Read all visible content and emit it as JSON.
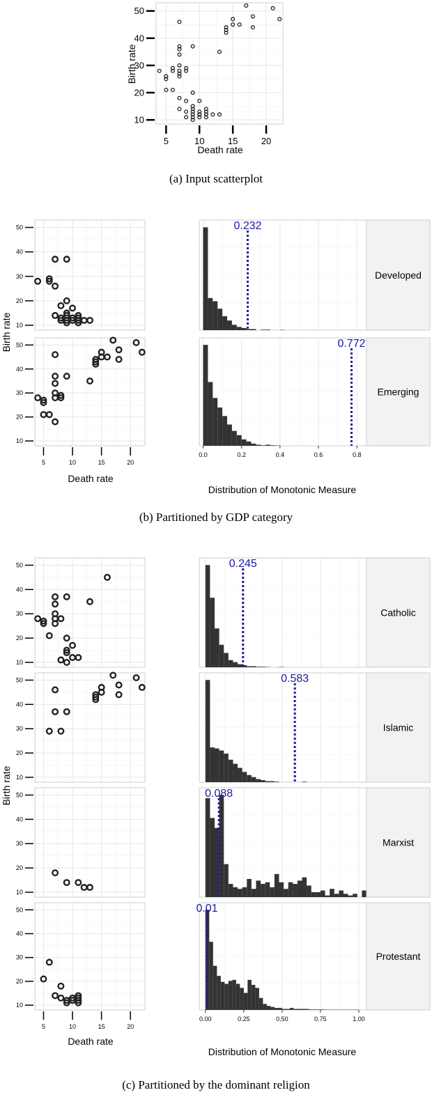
{
  "captions": {
    "a": "(a) Input scatterplot",
    "b": "(b) Partitioned by GDP category",
    "c": "(c) Partitioned by the dominant religion"
  },
  "labels": {
    "death_rate": "Death rate",
    "birth_rate": "Birth rate",
    "distribution": "Distribution of Monotonic Measure"
  },
  "colors": {
    "points": "#222222",
    "bars": "#333333",
    "obs_line": "#1a1aa6",
    "strip_bg": "#f2f2f2",
    "grid": "#e6e6e6",
    "panel_border": "#cccccc"
  },
  "chart_data": [
    {
      "id": "a",
      "type": "scatter",
      "xlabel": "Death rate",
      "ylabel": "Birth rate",
      "xlim": [
        3.5,
        22.5
      ],
      "ylim": [
        8.5,
        53
      ],
      "xticks": [
        5,
        10,
        15,
        20
      ],
      "yticks": [
        10,
        20,
        30,
        40,
        50
      ],
      "points": [
        [
          4,
          28
        ],
        [
          5,
          26
        ],
        [
          5,
          25
        ],
        [
          5,
          21
        ],
        [
          6,
          29
        ],
        [
          6,
          28
        ],
        [
          6,
          21
        ],
        [
          7,
          46
        ],
        [
          7,
          37
        ],
        [
          7,
          36
        ],
        [
          7,
          34
        ],
        [
          7,
          30
        ],
        [
          7,
          28
        ],
        [
          7,
          27
        ],
        [
          7,
          26
        ],
        [
          7,
          18
        ],
        [
          7,
          14
        ],
        [
          8,
          29
        ],
        [
          8,
          28
        ],
        [
          8,
          17
        ],
        [
          8,
          13
        ],
        [
          8,
          11
        ],
        [
          9,
          37
        ],
        [
          9,
          20
        ],
        [
          9,
          15
        ],
        [
          9,
          14
        ],
        [
          9,
          13
        ],
        [
          9,
          12
        ],
        [
          9,
          11
        ],
        [
          9,
          10
        ],
        [
          10,
          17
        ],
        [
          10,
          13
        ],
        [
          10,
          12
        ],
        [
          10,
          12
        ],
        [
          10,
          11
        ],
        [
          11,
          14
        ],
        [
          11,
          13
        ],
        [
          11,
          12
        ],
        [
          11,
          11
        ],
        [
          12,
          12
        ],
        [
          13,
          35
        ],
        [
          13,
          12
        ],
        [
          14,
          44
        ],
        [
          14,
          43
        ],
        [
          14,
          42
        ],
        [
          15,
          47
        ],
        [
          15,
          45
        ],
        [
          16,
          45
        ],
        [
          17,
          52
        ],
        [
          18,
          48
        ],
        [
          18,
          44
        ],
        [
          21,
          51
        ],
        [
          22,
          47
        ]
      ]
    },
    {
      "id": "b",
      "type": "scatter+histogram",
      "xlabel": "Death rate",
      "ylabel": "Birth rate",
      "hist_xlabel": "Distribution of Monotonic Measure",
      "hist_xticks": [
        0.0,
        0.2,
        0.4,
        0.6,
        0.8
      ],
      "hist_xlim": [
        -0.02,
        0.85
      ],
      "xlim": [
        3.5,
        22.5
      ],
      "ylim": [
        8,
        53
      ],
      "xticks": [
        5,
        10,
        15,
        20
      ],
      "yticks": [
        10,
        20,
        30,
        40,
        50
      ],
      "panels": [
        {
          "label": "Developed",
          "observed": 0.232,
          "observed_text": "0.232",
          "points": [
            [
              4,
              28
            ],
            [
              6,
              29
            ],
            [
              6,
              28
            ],
            [
              7,
              37
            ],
            [
              7,
              26
            ],
            [
              7,
              14
            ],
            [
              8,
              18
            ],
            [
              8,
              13
            ],
            [
              8,
              12
            ],
            [
              9,
              37
            ],
            [
              9,
              20
            ],
            [
              9,
              15
            ],
            [
              9,
              14
            ],
            [
              9,
              12
            ],
            [
              9,
              11
            ],
            [
              10,
              17
            ],
            [
              10,
              13
            ],
            [
              10,
              12
            ],
            [
              11,
              14
            ],
            [
              11,
              13
            ],
            [
              11,
              12
            ],
            [
              11,
              11
            ],
            [
              12,
              12
            ],
            [
              13,
              12
            ]
          ],
          "hist": {
            "bin_width": 0.025,
            "counts": [
              96,
              30,
              27,
              20,
              13,
              9,
              5,
              3,
              2,
              1,
              1,
              0,
              0.5,
              0.5,
              0,
              0,
              0.3,
              0,
              0,
              0,
              0,
              0,
              0,
              0,
              0,
              0,
              0,
              0,
              0,
              0,
              0,
              0
            ]
          }
        },
        {
          "label": "Emerging",
          "observed": 0.772,
          "observed_text": "0.772",
          "points": [
            [
              4,
              28
            ],
            [
              5,
              27
            ],
            [
              5,
              26
            ],
            [
              5,
              21
            ],
            [
              6,
              21
            ],
            [
              7,
              46
            ],
            [
              7,
              37
            ],
            [
              7,
              34
            ],
            [
              7,
              30
            ],
            [
              7,
              28
            ],
            [
              7,
              18
            ],
            [
              8,
              29
            ],
            [
              8,
              28
            ],
            [
              9,
              37
            ],
            [
              13,
              35
            ],
            [
              14,
              44
            ],
            [
              14,
              43
            ],
            [
              14,
              42
            ],
            [
              15,
              47
            ],
            [
              15,
              45
            ],
            [
              16,
              45
            ],
            [
              17,
              52
            ],
            [
              18,
              48
            ],
            [
              18,
              44
            ],
            [
              21,
              51
            ],
            [
              22,
              47
            ]
          ],
          "hist": {
            "bin_width": 0.025,
            "counts": [
              95,
              60,
              45,
              36,
              28,
              20,
              14,
              10,
              6,
              4,
              2,
              1,
              0.5,
              1,
              0.5,
              0.3,
              0,
              0,
              0,
              0,
              0,
              0,
              0,
              0,
              0,
              0,
              0,
              0,
              0,
              0,
              0,
              0
            ]
          }
        }
      ]
    },
    {
      "id": "c",
      "type": "scatter+histogram",
      "xlabel": "Death rate",
      "ylabel": "Birth rate",
      "hist_xlabel": "Distribution of Monotonic Measure",
      "hist_xticks": [
        0.0,
        0.25,
        0.5,
        0.75,
        1.0
      ],
      "hist_xtick_labels": [
        "0.00",
        "0.25",
        "0.50",
        "0.75",
        "1.00"
      ],
      "hist_xlim": [
        -0.04,
        1.05
      ],
      "xlim": [
        3.5,
        22.5
      ],
      "ylim": [
        8,
        53
      ],
      "xticks": [
        5,
        10,
        15,
        20
      ],
      "yticks": [
        10,
        20,
        30,
        40,
        50
      ],
      "panels": [
        {
          "label": "Catholic",
          "observed": 0.245,
          "observed_text": "0.245",
          "points": [
            [
              4,
              28
            ],
            [
              5,
              27
            ],
            [
              5,
              26
            ],
            [
              6,
              21
            ],
            [
              7,
              37
            ],
            [
              7,
              34
            ],
            [
              7,
              30
            ],
            [
              7,
              28
            ],
            [
              7,
              26
            ],
            [
              8,
              28
            ],
            [
              8,
              11
            ],
            [
              9,
              37
            ],
            [
              9,
              20
            ],
            [
              9,
              15
            ],
            [
              9,
              14
            ],
            [
              9,
              10
            ],
            [
              10,
              17
            ],
            [
              10,
              12
            ],
            [
              11,
              12
            ],
            [
              13,
              35
            ],
            [
              16,
              45
            ]
          ],
          "hist": {
            "bin_width": 0.03,
            "counts": [
              100,
              68,
              38,
              22,
              14,
              7,
              5,
              3,
              2,
              1,
              1,
              0.5,
              0.5,
              0.3,
              0,
              0,
              0.3,
              0,
              0,
              0,
              0,
              0,
              0,
              0,
              0,
              0,
              0,
              0,
              0,
              0,
              0,
              0,
              0,
              0,
              0
            ]
          }
        },
        {
          "label": "Islamic",
          "observed": 0.583,
          "observed_text": "0.583",
          "points": [
            [
              6,
              29
            ],
            [
              7,
              46
            ],
            [
              7,
              37
            ],
            [
              8,
              29
            ],
            [
              9,
              37
            ],
            [
              14,
              44
            ],
            [
              14,
              43
            ],
            [
              14,
              42
            ],
            [
              15,
              47
            ],
            [
              15,
              45
            ],
            [
              17,
              52
            ],
            [
              18,
              48
            ],
            [
              18,
              44
            ],
            [
              21,
              51
            ],
            [
              22,
              47
            ]
          ],
          "hist": {
            "bin_width": 0.03,
            "counts": [
              100,
              34,
              33,
              31,
              28,
              22,
              18,
              14,
              10,
              7,
              5,
              3,
              2,
              1,
              1,
              0.5,
              0,
              0,
              0,
              0,
              0,
              0.5,
              0,
              0,
              0,
              0,
              0,
              0,
              0,
              0,
              0,
              0,
              0,
              0,
              0
            ]
          }
        },
        {
          "label": "Marxist",
          "observed": 0.088,
          "observed_text": "0.088",
          "points": [
            [
              7,
              18
            ],
            [
              9,
              14
            ],
            [
              11,
              14
            ],
            [
              12,
              12
            ],
            [
              13,
              12
            ]
          ],
          "hist": {
            "bin_width": 0.03,
            "counts": [
              60,
              48,
              42,
              62,
              20,
              8,
              6,
              5,
              6,
              11,
              5,
              10,
              8,
              9,
              6,
              14,
              9,
              5,
              9,
              8,
              10,
              12,
              7,
              3,
              3,
              4,
              1,
              5,
              2,
              4,
              2,
              1,
              2,
              0,
              4
            ]
          }
        },
        {
          "label": "Protestant",
          "observed": 0.01,
          "observed_text": "0.01",
          "points": [
            [
              5,
              21
            ],
            [
              6,
              28
            ],
            [
              7,
              14
            ],
            [
              8,
              18
            ],
            [
              8,
              13
            ],
            [
              9,
              12
            ],
            [
              9,
              11
            ],
            [
              10,
              13
            ],
            [
              10,
              12
            ],
            [
              11,
              14
            ],
            [
              11,
              13
            ],
            [
              11,
              12
            ],
            [
              11,
              11
            ]
          ],
          "hist": {
            "bin_width": 0.025,
            "counts": [
              100,
              68,
              44,
              34,
              28,
              26,
              29,
              30,
              26,
              22,
              17,
              30,
              25,
              22,
              12,
              6,
              4,
              3,
              2,
              2,
              1,
              1,
              2,
              1,
              1,
              1,
              1,
              0.5,
              0.5,
              0.5,
              0.5,
              0.3,
              0.3,
              0.3,
              0.3,
              0.3,
              0.3,
              0.3,
              0.3,
              0.3
            ]
          }
        }
      ]
    }
  ]
}
